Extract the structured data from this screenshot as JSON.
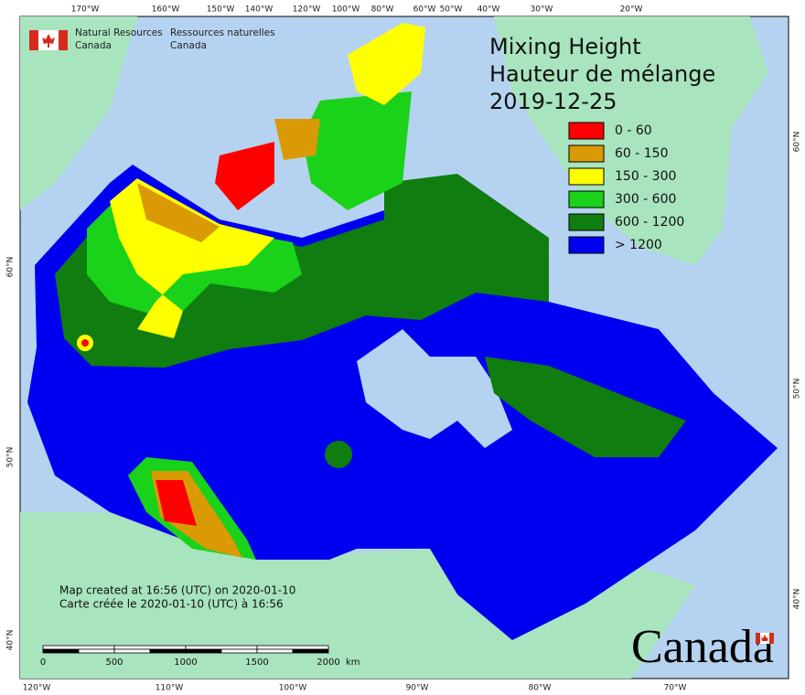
{
  "org": {
    "en_line1": "Natural Resources",
    "en_line2": "Canada",
    "fr_line1": "Ressources naturelles",
    "fr_line2": "Canada"
  },
  "title": {
    "en": "Mixing Height",
    "fr": "Hauteur de mélange",
    "date": "2019-12-25"
  },
  "legend": [
    {
      "label": "0 - 60",
      "color": "#ff0000"
    },
    {
      "label": "60 - 150",
      "color": "#d99a06"
    },
    {
      "label": "150 - 300",
      "color": "#ffff00"
    },
    {
      "label": "300 - 600",
      "color": "#19d219"
    },
    {
      "label": "600 - 1200",
      "color": "#0f7d0f"
    },
    {
      "label": "> 1200",
      "color": "#0000f0"
    }
  ],
  "graticule": {
    "top": [
      "170°W",
      "160°W",
      "150°W",
      "140°W",
      "120°W",
      "100°W",
      "80°W",
      "60°W",
      "50°W",
      "40°W",
      "30°W",
      "20°W"
    ],
    "bottom": [
      "120°W",
      "110°W",
      "100°W",
      "90°W",
      "80°W",
      "70°W"
    ],
    "left": [
      "60°N",
      "50°N",
      "40°N"
    ],
    "right": [
      "60°N",
      "50°N",
      "40°N"
    ]
  },
  "notes": [
    "Map created at 16:56 (UTC) on 2020-01-10",
    "Carte créée le 2020-01-10 (UTC) à 16:56"
  ],
  "scale_bar": {
    "labels": [
      "0",
      "500",
      "1000",
      "1500",
      "2000"
    ],
    "unit": "km"
  },
  "wordmark": "Canada"
}
